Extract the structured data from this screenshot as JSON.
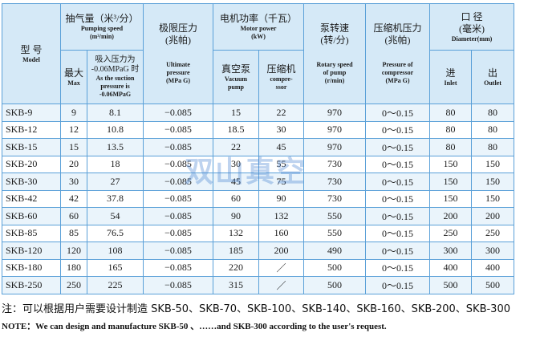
{
  "header": {
    "model": {
      "zh": "型 号",
      "en": "Model"
    },
    "pumping_speed": {
      "zh": "抽气量（米³/分）",
      "en": "Pumping speed",
      "unit": "(m³/min)"
    },
    "max": {
      "zh": "最大",
      "en": "Max"
    },
    "suction": {
      "zh": [
        "吸入压力为",
        "-0.06MPaG 时"
      ],
      "en": [
        "As the suction",
        "pressure is",
        "-0.06MPaG"
      ]
    },
    "ultimate": {
      "zh": [
        "极限压力",
        "(兆帕)"
      ],
      "en": [
        "Ultimate",
        "pressure",
        "(MPa G)"
      ]
    },
    "motor_power": {
      "zh": "电机功率（千瓦）",
      "en": "Motor power",
      "unit": "(kW)"
    },
    "vacuum_pump": {
      "zh": "真空泵",
      "en": [
        "Vacuum",
        "pump"
      ]
    },
    "compressor": {
      "zh": "压缩机",
      "en": [
        "compre-",
        "ssor"
      ]
    },
    "rotary": {
      "zh": [
        "泵转速",
        "(转/分)"
      ],
      "en": [
        "Rotary speed",
        "of pump",
        "(r/min)"
      ]
    },
    "compressor_pressure": {
      "zh": [
        "压缩机压力",
        "(兆帕)"
      ],
      "en": [
        "Pressure of",
        "compressor",
        "(MPa G)"
      ]
    },
    "diameter": {
      "zh": [
        "口 径",
        "(毫米)"
      ],
      "en": "Diameter(mm)"
    },
    "inlet": {
      "zh": "进",
      "en": "Inlet"
    },
    "outlet": {
      "zh": "出",
      "en": "Outlet"
    }
  },
  "table": {
    "rows": [
      [
        "SKB-9",
        "9",
        "8.1",
        "−0.085",
        "15",
        "22",
        "970",
        "0～0.15",
        "80",
        "80"
      ],
      [
        "SKB-12",
        "12",
        "10.8",
        "−0.085",
        "18.5",
        "30",
        "970",
        "0～0.15",
        "80",
        "80"
      ],
      [
        "SKB-15",
        "15",
        "13.5",
        "−0.085",
        "22",
        "45",
        "970",
        "0～0.15",
        "80",
        "80"
      ],
      [
        "SKB-20",
        "20",
        "18",
        "−0.085",
        "30",
        "55",
        "730",
        "0～0.15",
        "150",
        "150"
      ],
      [
        "SKB-30",
        "30",
        "27",
        "−0.085",
        "45",
        "75",
        "730",
        "0～0.15",
        "150",
        "150"
      ],
      [
        "SKB-42",
        "42",
        "37.8",
        "−0.085",
        "60",
        "90",
        "730",
        "0～0.15",
        "150",
        "150"
      ],
      [
        "SKB-60",
        "60",
        "54",
        "−0.085",
        "90",
        "132",
        "550",
        "0～0.15",
        "200",
        "200"
      ],
      [
        "SKB-85",
        "85",
        "76.5",
        "−0.085",
        "132",
        "160",
        "550",
        "0～0.15",
        "250",
        "250"
      ],
      [
        "SKB-120",
        "120",
        "108",
        "−0.085",
        "185",
        "200",
        "490",
        "0～0.15",
        "300",
        "300"
      ],
      [
        "SKB-180",
        "180",
        "165",
        "−0.085",
        "220",
        "／",
        "500",
        "0～0.15",
        "400",
        "400"
      ],
      [
        "SKB-250",
        "250",
        "225",
        "−0.085",
        "315",
        "／",
        "500",
        "0～0.15",
        "500",
        "500"
      ]
    ]
  },
  "watermark": "双山真空",
  "notes": {
    "zh": "注：可以根据用户需要设计制造 SKB-50、SKB-70、SKB-100、SKB-140、SKB-160、SKB-200、SKB-300",
    "en": "NOTE：We can design and manufacture SKB-50 、……and SKB-300 according to the user's request."
  }
}
